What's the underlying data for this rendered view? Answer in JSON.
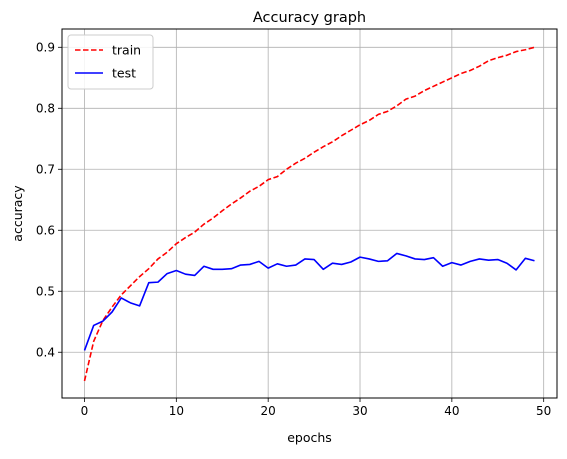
{
  "chart_data": {
    "type": "line",
    "title": "Accuracy graph",
    "xlabel": "epochs",
    "ylabel": "accuracy",
    "xlim": [
      -2.45,
      51.45
    ],
    "ylim": [
      0.325,
      0.93
    ],
    "x_ticks": [
      0,
      10,
      20,
      30,
      40,
      50
    ],
    "y_ticks": [
      0.4,
      0.5,
      0.6,
      0.7,
      0.8,
      0.9
    ],
    "grid": true,
    "legend": "top-left",
    "x": [
      0,
      1,
      2,
      3,
      4,
      5,
      6,
      7,
      8,
      9,
      10,
      11,
      12,
      13,
      14,
      15,
      16,
      17,
      18,
      19,
      20,
      21,
      22,
      23,
      24,
      25,
      26,
      27,
      28,
      29,
      30,
      31,
      32,
      33,
      34,
      35,
      36,
      37,
      38,
      39,
      40,
      41,
      42,
      43,
      44,
      45,
      46,
      47,
      48,
      49
    ],
    "series": [
      {
        "name": "train",
        "color": "#ff0000",
        "dash": "dashed",
        "values": [
          0.353,
          0.418,
          0.452,
          0.474,
          0.494,
          0.509,
          0.524,
          0.537,
          0.553,
          0.564,
          0.578,
          0.588,
          0.597,
          0.61,
          0.62,
          0.632,
          0.643,
          0.653,
          0.664,
          0.672,
          0.683,
          0.688,
          0.7,
          0.71,
          0.718,
          0.728,
          0.737,
          0.745,
          0.755,
          0.764,
          0.773,
          0.78,
          0.79,
          0.795,
          0.804,
          0.815,
          0.82,
          0.829,
          0.836,
          0.843,
          0.85,
          0.857,
          0.862,
          0.869,
          0.878,
          0.883,
          0.887,
          0.893,
          0.896,
          0.9
        ]
      },
      {
        "name": "test",
        "color": "#0000ff",
        "dash": "solid",
        "values": [
          0.403,
          0.444,
          0.451,
          0.466,
          0.489,
          0.481,
          0.476,
          0.514,
          0.515,
          0.529,
          0.534,
          0.528,
          0.526,
          0.541,
          0.536,
          0.536,
          0.537,
          0.543,
          0.544,
          0.549,
          0.538,
          0.545,
          0.541,
          0.543,
          0.553,
          0.552,
          0.536,
          0.546,
          0.544,
          0.548,
          0.556,
          0.553,
          0.549,
          0.55,
          0.562,
          0.558,
          0.553,
          0.552,
          0.555,
          0.541,
          0.547,
          0.543,
          0.549,
          0.553,
          0.551,
          0.552,
          0.546,
          0.535,
          0.554,
          0.55
        ]
      }
    ]
  }
}
